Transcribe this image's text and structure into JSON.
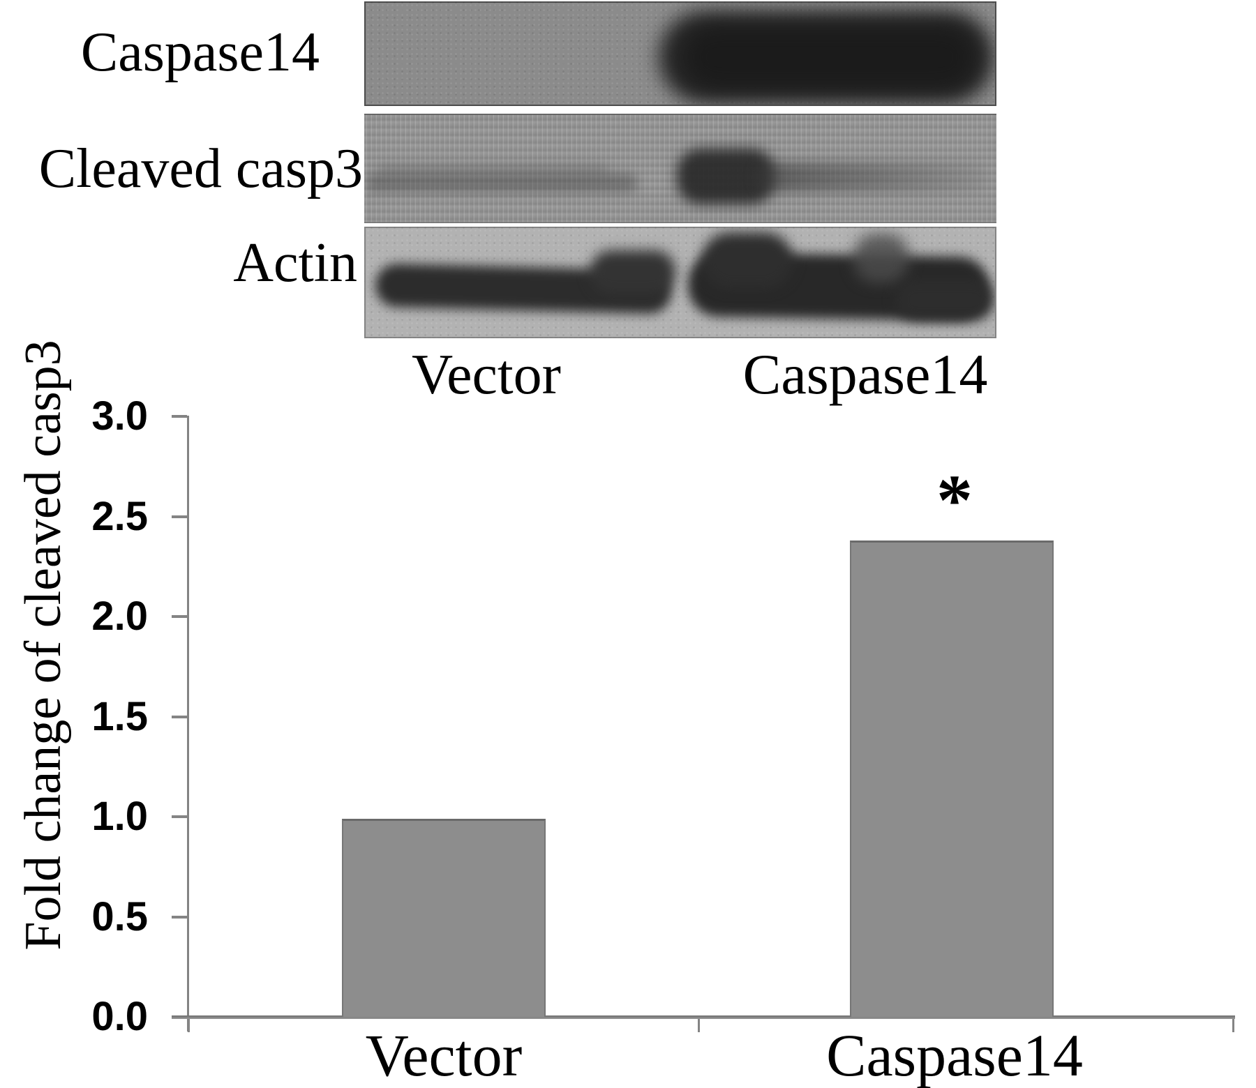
{
  "blot_panel": {
    "rows": [
      {
        "label": "Caspase14"
      },
      {
        "label": "Cleaved casp3"
      },
      {
        "label": "Actin"
      }
    ],
    "lane_labels": [
      "Vector",
      "Caspase14"
    ]
  },
  "chart_data": {
    "type": "bar",
    "title": "",
    "categories": [
      "Vector",
      "Caspase14"
    ],
    "values": [
      0.99,
      2.38
    ],
    "bar_annotations": [
      "",
      "*"
    ],
    "ylabel": "Fold change of cleaved casp3",
    "xlabel": "",
    "ytick_labels": [
      "3.0",
      "2.5",
      "2.0",
      "1.5",
      "1.0",
      "0.5",
      "0.0"
    ],
    "ylim": [
      0,
      3
    ],
    "grid": false,
    "legend": null,
    "bar_color": "#8d8d8d",
    "axis_color": "#848484"
  }
}
